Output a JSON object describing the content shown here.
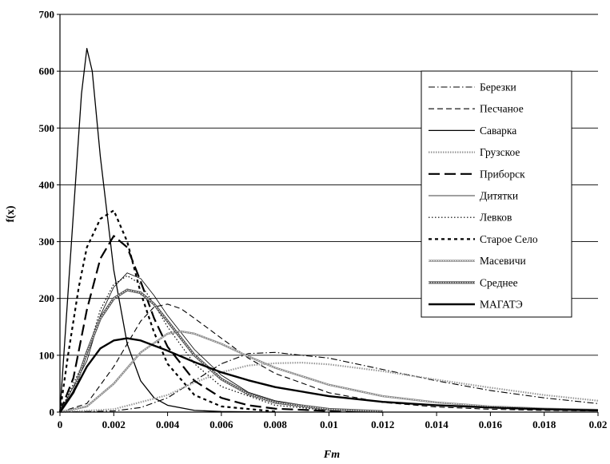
{
  "chart_data": {
    "type": "line",
    "title": "",
    "xlabel": "Fm",
    "ylabel": "f(x)",
    "xlim": [
      0,
      0.02
    ],
    "ylim": [
      0,
      700
    ],
    "x_ticks": [
      "0",
      "0.002",
      "0.004",
      "0.006",
      "0.008",
      "0.01",
      "0.012",
      "0.014",
      "0.016",
      "0.018",
      "0.02"
    ],
    "y_ticks": [
      "0",
      "100",
      "200",
      "300",
      "400",
      "500",
      "600",
      "700"
    ],
    "grid": "horizontal",
    "legend_position": "right",
    "series": [
      {
        "name": "Березки",
        "style": "dashdot",
        "width": 1.1,
        "color": "#000000",
        "x": [
          0,
          0.002,
          0.003,
          0.004,
          0.005,
          0.006,
          0.007,
          0.008,
          0.01,
          0.012,
          0.014,
          0.016,
          0.018,
          0.02
        ],
        "y": [
          0,
          2,
          8,
          25,
          55,
          85,
          103,
          105,
          95,
          75,
          55,
          38,
          25,
          15
        ]
      },
      {
        "name": "Песчаное",
        "style": "dash",
        "width": 1.1,
        "color": "#000000",
        "x": [
          0,
          0.001,
          0.002,
          0.003,
          0.0035,
          0.004,
          0.0045,
          0.005,
          0.006,
          0.007,
          0.008,
          0.01,
          0.012,
          0.014,
          0.016,
          0.018,
          0.02
        ],
        "y": [
          0,
          15,
          80,
          160,
          185,
          190,
          182,
          165,
          130,
          95,
          68,
          34,
          17,
          9,
          5,
          3,
          2
        ]
      },
      {
        "name": "Саварка",
        "style": "solid",
        "width": 1.3,
        "color": "#000000",
        "x": [
          0,
          0.0005,
          0.0008,
          0.001,
          0.0012,
          0.0015,
          0.002,
          0.0025,
          0.003,
          0.0035,
          0.004,
          0.005,
          0.006,
          0.008
        ],
        "y": [
          0,
          350,
          560,
          640,
          600,
          450,
          250,
          120,
          55,
          25,
          12,
          3,
          1,
          0
        ]
      },
      {
        "name": "Грузское",
        "style": "dotdense",
        "width": 2.2,
        "color": "#9a9a9a",
        "x": [
          0,
          0.002,
          0.004,
          0.005,
          0.006,
          0.007,
          0.008,
          0.009,
          0.01,
          0.012,
          0.014,
          0.016,
          0.018,
          0.02
        ],
        "y": [
          0,
          5,
          30,
          52,
          70,
          82,
          86,
          87,
          84,
          72,
          57,
          43,
          30,
          20
        ]
      },
      {
        "name": "Приборск",
        "style": "longdash",
        "width": 2.2,
        "color": "#000000",
        "x": [
          0,
          0.0005,
          0.001,
          0.0015,
          0.002,
          0.0025,
          0.003,
          0.0035,
          0.004,
          0.005,
          0.006,
          0.007,
          0.008,
          0.01,
          0.012
        ],
        "y": [
          0,
          60,
          180,
          270,
          310,
          290,
          230,
          165,
          115,
          55,
          25,
          12,
          6,
          2,
          1
        ]
      },
      {
        "name": "Дитятки",
        "style": "solid",
        "width": 0.8,
        "color": "#000000",
        "x": [
          0,
          0.001,
          0.0015,
          0.002,
          0.0025,
          0.003,
          0.0035,
          0.004,
          0.005,
          0.006,
          0.007,
          0.008,
          0.01
        ],
        "y": [
          0,
          90,
          170,
          220,
          245,
          235,
          205,
          170,
          110,
          65,
          35,
          20,
          5
        ]
      },
      {
        "name": "Левков",
        "style": "dot",
        "width": 1.2,
        "color": "#000000",
        "x": [
          0,
          0.001,
          0.0015,
          0.002,
          0.0025,
          0.003,
          0.0035,
          0.004,
          0.005,
          0.006,
          0.008,
          0.01
        ],
        "y": [
          0,
          100,
          180,
          225,
          240,
          225,
          190,
          150,
          85,
          45,
          12,
          3
        ]
      },
      {
        "name": "Старое Село",
        "style": "shortdash",
        "width": 2.2,
        "color": "#000000",
        "x": [
          0,
          0.0003,
          0.0007,
          0.001,
          0.0015,
          0.002,
          0.0025,
          0.003,
          0.0035,
          0.004,
          0.005,
          0.006,
          0.008
        ],
        "y": [
          0,
          100,
          220,
          290,
          340,
          355,
          300,
          210,
          140,
          85,
          30,
          10,
          1
        ]
      },
      {
        "name": "Масевичи",
        "style": "doubleline",
        "width": 2.4,
        "color": "#8a8a8a",
        "x": [
          0,
          0.001,
          0.002,
          0.003,
          0.004,
          0.0045,
          0.005,
          0.006,
          0.007,
          0.008,
          0.01,
          0.012,
          0.014,
          0.016,
          0.018,
          0.02
        ],
        "y": [
          0,
          10,
          50,
          105,
          138,
          142,
          138,
          120,
          98,
          78,
          48,
          28,
          17,
          10,
          6,
          4
        ]
      },
      {
        "name": "Среднее",
        "style": "doubleline",
        "width": 3.2,
        "color": "#555555",
        "x": [
          0,
          0.0005,
          0.001,
          0.0015,
          0.002,
          0.0025,
          0.003,
          0.0035,
          0.004,
          0.005,
          0.006,
          0.007,
          0.008,
          0.01,
          0.012
        ],
        "y": [
          0,
          35,
          105,
          165,
          200,
          215,
          210,
          190,
          160,
          100,
          58,
          32,
          17,
          5,
          1
        ]
      },
      {
        "name": "МАГАТЭ",
        "style": "solid",
        "width": 2.4,
        "color": "#000000",
        "x": [
          0,
          0.0005,
          0.001,
          0.0015,
          0.002,
          0.0025,
          0.003,
          0.004,
          0.005,
          0.006,
          0.007,
          0.008,
          0.01,
          0.012,
          0.014,
          0.016,
          0.018,
          0.02
        ],
        "y": [
          0,
          35,
          80,
          112,
          126,
          130,
          126,
          108,
          88,
          70,
          56,
          44,
          28,
          18,
          12,
          8,
          5,
          3
        ]
      }
    ]
  }
}
